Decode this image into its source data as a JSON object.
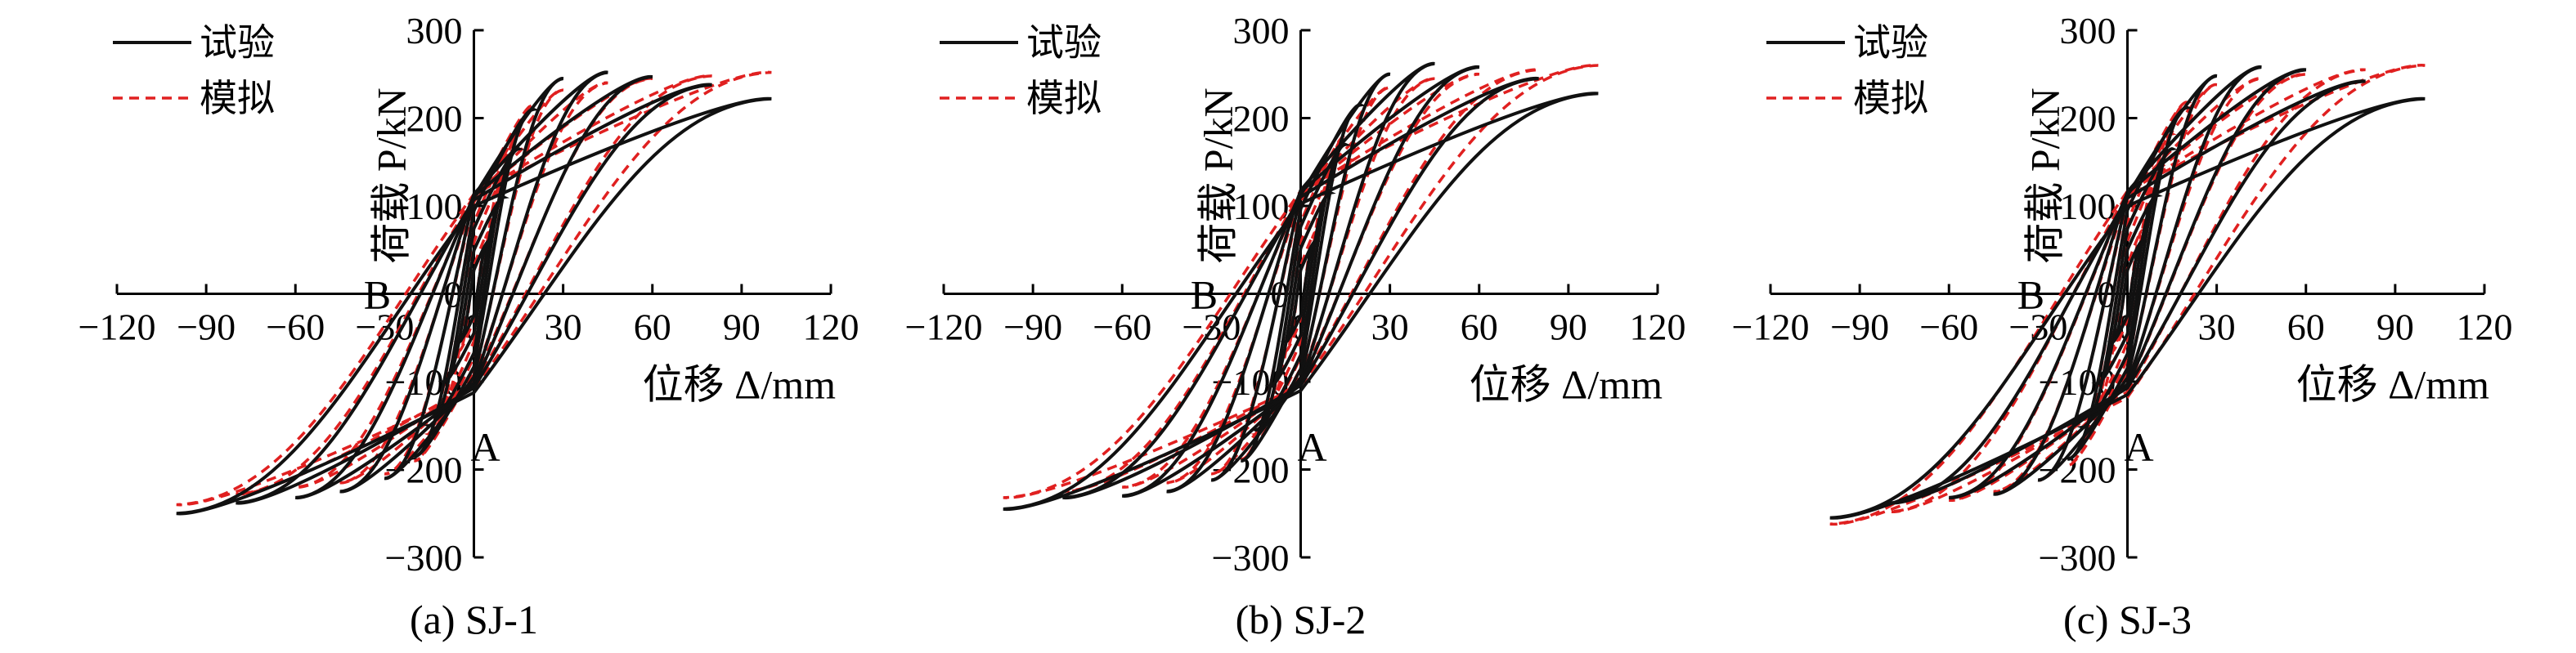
{
  "chart_data": [
    {
      "type": "line",
      "caption": "(a) SJ-1",
      "xlabel": "位移 Δ/mm",
      "ylabel": "荷载 P/kN",
      "xlim": [
        -120,
        120
      ],
      "ylim": [
        -300,
        300
      ],
      "xticks": [
        -120,
        -90,
        -60,
        -30,
        0,
        30,
        60,
        90,
        120
      ],
      "yticks": [
        -300,
        -200,
        -100,
        0,
        100,
        200,
        300
      ],
      "xtick_labels": [
        "−120",
        "−90",
        "−60",
        "−30",
        "0",
        "30",
        "60",
        "90",
        "120"
      ],
      "ytick_labels": [
        "−300",
        "−200",
        "−100",
        "0",
        "100",
        "200",
        "300"
      ],
      "annotations": [
        {
          "text": "A",
          "x": 0,
          "y": -125
        },
        {
          "text": "B",
          "x": -20,
          "y": 0
        }
      ],
      "series": [
        {
          "name": "试验",
          "color": "#000000",
          "style": "solid",
          "peaks": [
            [
              5,
              60,
              -5,
              -55
            ],
            [
              10,
              110,
              -10,
              -100
            ],
            [
              15,
              165,
              -15,
              -150
            ],
            [
              20,
              210,
              -20,
              -185
            ],
            [
              30,
              245,
              -30,
              -210
            ],
            [
              45,
              252,
              -45,
              -225
            ],
            [
              60,
              247,
              -60,
              -232
            ],
            [
              80,
              238,
              -80,
              -238
            ],
            [
              100,
              222,
              -100,
              -250
            ]
          ]
        },
        {
          "name": "模拟",
          "color": "#e02020",
          "style": "dashed",
          "peaks": [
            [
              5,
              70,
              -5,
              -65
            ],
            [
              10,
              130,
              -10,
              -120
            ],
            [
              15,
              180,
              -15,
              -160
            ],
            [
              20,
              215,
              -20,
              -190
            ],
            [
              30,
              232,
              -30,
              -205
            ],
            [
              45,
              240,
              -45,
              -215
            ],
            [
              60,
              245,
              -60,
              -220
            ],
            [
              80,
              248,
              -80,
              -228
            ],
            [
              100,
              252,
              -100,
              -240
            ]
          ]
        }
      ]
    },
    {
      "type": "line",
      "caption": "(b) SJ-2",
      "xlabel": "位移 Δ/mm",
      "ylabel": "荷载 P/kN",
      "xlim": [
        -120,
        120
      ],
      "ylim": [
        -300,
        300
      ],
      "xticks": [
        -120,
        -90,
        -60,
        -30,
        0,
        30,
        60,
        90,
        120
      ],
      "yticks": [
        -300,
        -200,
        -100,
        0,
        100,
        200,
        300
      ],
      "xtick_labels": [
        "−120",
        "−90",
        "−60",
        "−30",
        "0",
        "30",
        "60",
        "90",
        "120"
      ],
      "ytick_labels": [
        "−300",
        "−200",
        "−100",
        "0",
        "100",
        "200",
        "300"
      ],
      "annotations": [
        {
          "text": "A",
          "x": 0,
          "y": -125
        },
        {
          "text": "B",
          "x": -20,
          "y": 0
        }
      ],
      "series": [
        {
          "name": "试验",
          "color": "#000000",
          "style": "solid",
          "peaks": [
            [
              5,
              60,
              -5,
              -55
            ],
            [
              10,
              115,
              -10,
              -105
            ],
            [
              15,
              170,
              -15,
              -155
            ],
            [
              20,
              215,
              -20,
              -190
            ],
            [
              30,
              250,
              -30,
              -212
            ],
            [
              45,
              262,
              -45,
              -225
            ],
            [
              60,
              258,
              -60,
              -230
            ],
            [
              80,
              245,
              -80,
              -232
            ],
            [
              100,
              228,
              -100,
              -245
            ]
          ]
        },
        {
          "name": "模拟",
          "color": "#e02020",
          "style": "dashed",
          "peaks": [
            [
              5,
              70,
              -5,
              -65
            ],
            [
              10,
              130,
              -10,
              -120
            ],
            [
              15,
              180,
              -15,
              -160
            ],
            [
              20,
              215,
              -20,
              -188
            ],
            [
              30,
              235,
              -30,
              -205
            ],
            [
              45,
              245,
              -45,
              -215
            ],
            [
              60,
              250,
              -60,
              -220
            ],
            [
              80,
              255,
              -80,
              -225
            ],
            [
              100,
              260,
              -100,
              -232
            ]
          ]
        }
      ]
    },
    {
      "type": "line",
      "caption": "(c) SJ-3",
      "xlabel": "位移 Δ/mm",
      "ylabel": "荷载 P/kN",
      "xlim": [
        -120,
        120
      ],
      "ylim": [
        -300,
        300
      ],
      "xticks": [
        -120,
        -90,
        -60,
        -30,
        0,
        30,
        60,
        90,
        120
      ],
      "yticks": [
        -300,
        -200,
        -100,
        0,
        100,
        200,
        300
      ],
      "xtick_labels": [
        "−120",
        "−90",
        "−60",
        "−30",
        "0",
        "30",
        "60",
        "90",
        "120"
      ],
      "ytick_labels": [
        "−300",
        "−200",
        "−100",
        "0",
        "100",
        "200",
        "300"
      ],
      "annotations": [
        {
          "text": "A",
          "x": 0,
          "y": -125
        },
        {
          "text": "B",
          "x": -20,
          "y": 0
        }
      ],
      "series": [
        {
          "name": "试验",
          "color": "#000000",
          "style": "solid",
          "peaks": [
            [
              5,
              60,
              -5,
              -55
            ],
            [
              10,
              112,
              -10,
              -102
            ],
            [
              15,
              165,
              -15,
              -152
            ],
            [
              20,
              212,
              -20,
              -188
            ],
            [
              30,
              248,
              -30,
              -212
            ],
            [
              45,
              258,
              -45,
              -228
            ],
            [
              60,
              255,
              -60,
              -232
            ],
            [
              80,
              242,
              -80,
              -238
            ],
            [
              100,
              222,
              -100,
              -255
            ]
          ]
        },
        {
          "name": "模拟",
          "color": "#e02020",
          "style": "dashed",
          "peaks": [
            [
              5,
              72,
              -5,
              -65
            ],
            [
              10,
              132,
              -10,
              -122
            ],
            [
              15,
              182,
              -15,
              -165
            ],
            [
              20,
              218,
              -20,
              -195
            ],
            [
              30,
              238,
              -30,
              -212
            ],
            [
              45,
              245,
              -45,
              -225
            ],
            [
              60,
              250,
              -60,
              -235
            ],
            [
              80,
              255,
              -80,
              -248
            ],
            [
              100,
              260,
              -100,
              -262
            ]
          ]
        }
      ]
    }
  ]
}
